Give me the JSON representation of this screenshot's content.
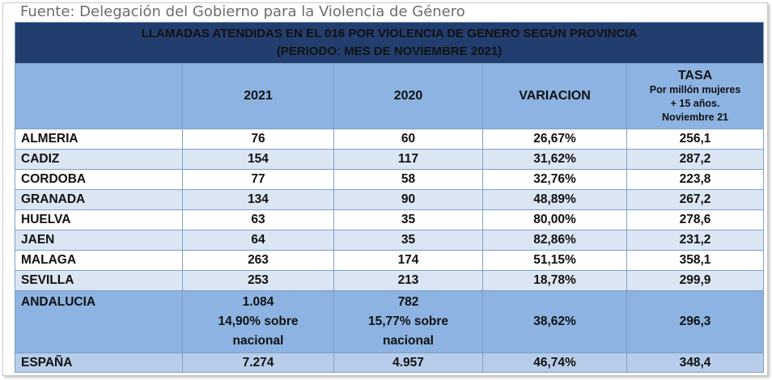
{
  "source": "Fuente: Delegación del Gobierno para la Violencia de Género",
  "title": {
    "line1": "LLAMADAS ATENDIDAS EN EL 016 POR VIOLENCIA DE GENERO SEGÚN PROVINCIA",
    "line2": "(PERIODO: MES DE NOVIEMBRE 2021)"
  },
  "headers": {
    "col_2021": "2021",
    "col_2020": "2020",
    "variacion": "VARIACION",
    "tasa_title": "TASA",
    "tasa_sub1": "Por millón mujeres",
    "tasa_sub2": "+ 15 años.",
    "tasa_sub3": "Noviembre 21"
  },
  "rows": [
    {
      "name": "ALMERIA",
      "v2021": "76",
      "v2020": "60",
      "variacion": "26,67%",
      "tasa": "256,1"
    },
    {
      "name": "CADIZ",
      "v2021": "154",
      "v2020": "117",
      "variacion": "31,62%",
      "tasa": "287,2"
    },
    {
      "name": "CORDOBA",
      "v2021": "77",
      "v2020": "58",
      "variacion": "32,76%",
      "tasa": "223,8"
    },
    {
      "name": "GRANADA",
      "v2021": "134",
      "v2020": "90",
      "variacion": "48,89%",
      "tasa": "267,2"
    },
    {
      "name": "HUELVA",
      "v2021": "63",
      "v2020": "35",
      "variacion": "80,00%",
      "tasa": "278,6"
    },
    {
      "name": "JAEN",
      "v2021": "64",
      "v2020": "35",
      "variacion": "82,86%",
      "tasa": "231,2"
    },
    {
      "name": "MALAGA",
      "v2021": "263",
      "v2020": "174",
      "variacion": "51,15%",
      "tasa": "358,1"
    },
    {
      "name": "SEVILLA",
      "v2021": "253",
      "v2020": "213",
      "variacion": "18,78%",
      "tasa": "299,9"
    }
  ],
  "andalucia": {
    "name": "ANDALUCIA",
    "v2021": "1.084",
    "v2021_note1": "14,90% sobre",
    "v2021_note2": "nacional",
    "v2020": "782",
    "v2020_note1": "15,77% sobre",
    "v2020_note2": "nacional",
    "variacion": "38,62%",
    "tasa": "296,3"
  },
  "espana": {
    "name": "ESPAÑA",
    "v2021": "7.274",
    "v2020": "4.957",
    "variacion": "46,74%",
    "tasa": "348,4"
  }
}
